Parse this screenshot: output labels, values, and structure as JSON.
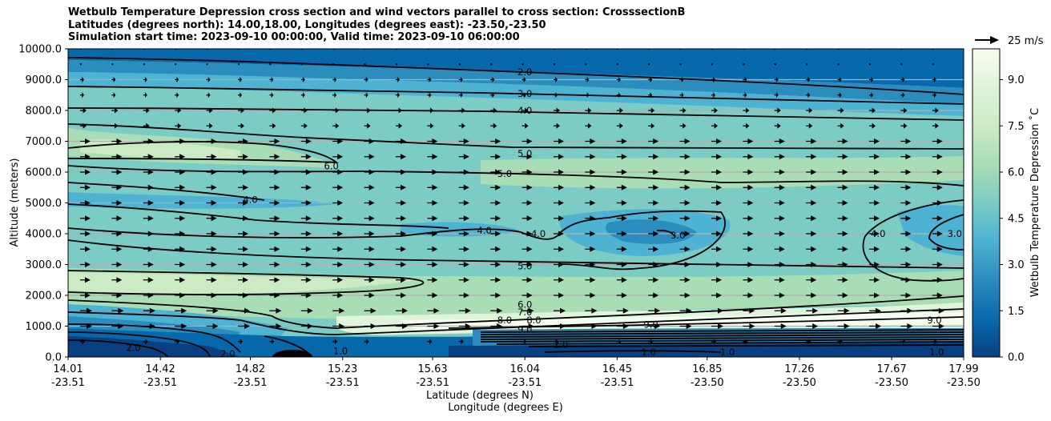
{
  "chart_data": {
    "type": "contour",
    "title_lines": [
      "Wetbulb Temperature Depression cross section and wind vectors parallel to cross section: CrosssectionB",
      "Latitudes (degrees north): 14.00,18.00, Longitudes (degrees east): -23.50,-23.50",
      "Simulation start time: 2023-09-10 00:00:00, Valid time: 2023-09-10 06:00:00"
    ],
    "ylabel": "Altitude (meters)",
    "xlabel_lat": "Latitude (degrees N)",
    "xlabel_lon": "Longitude (degrees E)",
    "ylim": [
      0,
      10000
    ],
    "yticks": [
      "0.0",
      "1000.0",
      "2000.0",
      "3000.0",
      "4000.0",
      "5000.0",
      "6000.0",
      "7000.0",
      "8000.0",
      "9000.0",
      "10000.0"
    ],
    "xticks": [
      {
        "lat": "14.01",
        "lon": "-23.51"
      },
      {
        "lat": "14.42",
        "lon": "-23.51"
      },
      {
        "lat": "14.82",
        "lon": "-23.51"
      },
      {
        "lat": "15.23",
        "lon": "-23.51"
      },
      {
        "lat": "15.63",
        "lon": "-23.51"
      },
      {
        "lat": "16.04",
        "lon": "-23.51"
      },
      {
        "lat": "16.45",
        "lon": "-23.51"
      },
      {
        "lat": "16.85",
        "lon": "-23.50"
      },
      {
        "lat": "17.26",
        "lon": "-23.50"
      },
      {
        "lat": "17.67",
        "lon": "-23.50"
      },
      {
        "lat": "17.99",
        "lon": "-23.50"
      }
    ],
    "colorbar": {
      "label": "Wetbulb Temperature Depression $^\\circ$C",
      "label_display": "Wetbulb Temperature Depression ˚C",
      "ticks": [
        "0.0",
        "1.5",
        "3.0",
        "4.5",
        "6.0",
        "7.5",
        "9.0"
      ],
      "range": [
        0,
        10
      ],
      "colormap": [
        "#084081",
        "#0868ac",
        "#2b8cbe",
        "#4eb3d3",
        "#7bccc4",
        "#a8ddb5",
        "#ccebc5",
        "#e0f3db",
        "#f7fcf0"
      ]
    },
    "quiver_key": "25 m/s",
    "contour_labels": [
      {
        "value": "2.0",
        "lat": 16.04,
        "alt": 9250
      },
      {
        "value": "3.0",
        "lat": 16.04,
        "alt": 8550
      },
      {
        "value": "4.0",
        "lat": 16.04,
        "alt": 8000
      },
      {
        "value": "5.0",
        "lat": 16.04,
        "alt": 6600
      },
      {
        "value": "6.0",
        "lat": 15.18,
        "alt": 6200
      },
      {
        "value": "5.0",
        "lat": 15.95,
        "alt": 5950
      },
      {
        "value": "4.0",
        "lat": 14.82,
        "alt": 5100
      },
      {
        "value": "4.0",
        "lat": 15.86,
        "alt": 4100
      },
      {
        "value": "4.0",
        "lat": 16.1,
        "alt": 4000
      },
      {
        "value": "3.0",
        "lat": 16.72,
        "alt": 3950
      },
      {
        "value": "4.0",
        "lat": 17.61,
        "alt": 4000
      },
      {
        "value": "3.0",
        "lat": 17.95,
        "alt": 4000
      },
      {
        "value": "5.0",
        "lat": 16.04,
        "alt": 2950
      },
      {
        "value": "6.0",
        "lat": 16.04,
        "alt": 1700
      },
      {
        "value": "7.0",
        "lat": 16.04,
        "alt": 1450
      },
      {
        "value": "8.0",
        "lat": 15.95,
        "alt": 1200
      },
      {
        "value": "8.0",
        "lat": 16.08,
        "alt": 1200
      },
      {
        "value": "9.0",
        "lat": 16.04,
        "alt": 900
      },
      {
        "value": "9.0",
        "lat": 16.6,
        "alt": 1050
      },
      {
        "value": "9.0",
        "lat": 17.86,
        "alt": 1200
      },
      {
        "value": "2.0",
        "lat": 14.3,
        "alt": 300
      },
      {
        "value": "2.0",
        "lat": 14.72,
        "alt": 100
      },
      {
        "value": "1.0",
        "lat": 15.22,
        "alt": 200
      },
      {
        "value": "2.0",
        "lat": 16.2,
        "alt": 400
      },
      {
        "value": "1.0",
        "lat": 16.59,
        "alt": 150
      },
      {
        "value": "1.0",
        "lat": 16.94,
        "alt": 150
      },
      {
        "value": "1.0",
        "lat": 17.87,
        "alt": 150
      }
    ]
  }
}
